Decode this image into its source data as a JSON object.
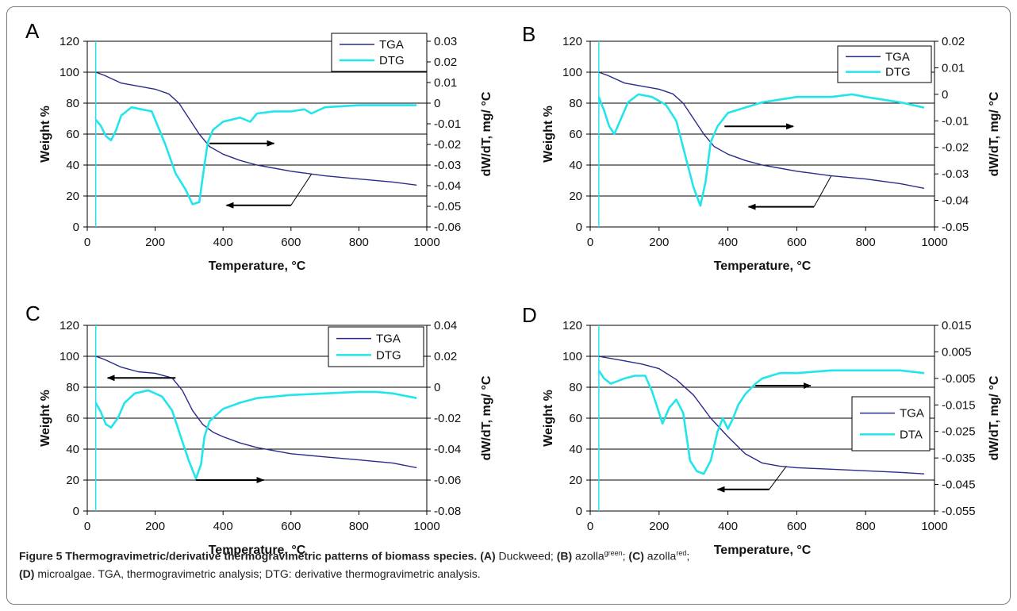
{
  "chart_data": [
    {
      "panel_label": "A",
      "type": "line",
      "xlabel": "Temperature,",
      "xunit": "°C",
      "ylabel": "Weight %",
      "y2label": "dW/dT, mg/",
      "y2unit": "°C",
      "xlim": [
        0,
        1000
      ],
      "xticks": [
        "0",
        "200",
        "400",
        "600",
        "800",
        "1000"
      ],
      "ylim": [
        0,
        120
      ],
      "yticks": [
        "0",
        "20",
        "40",
        "60",
        "80",
        "100",
        "120"
      ],
      "y2lim": [
        -0.06,
        0.03
      ],
      "y2ticks": [
        "-0.06",
        "-0.05",
        "-0.04",
        "-0.03",
        "-0.02",
        "-0.01",
        "0",
        "0.01",
        "0.02",
        "0.03"
      ],
      "gridlines": "horizontal",
      "legend": {
        "position": "top-right",
        "entries": [
          "TGA",
          "DTG"
        ]
      },
      "series": [
        {
          "name": "TGA",
          "axis": "left",
          "color": "#2b2b8c",
          "x": [
            25,
            50,
            100,
            150,
            200,
            240,
            270,
            300,
            330,
            360,
            400,
            450,
            500,
            600,
            700,
            800,
            900,
            970
          ],
          "y": [
            100,
            98,
            93,
            91,
            89,
            86,
            80,
            70,
            60,
            52,
            47,
            43,
            40,
            36,
            33,
            31,
            29,
            27
          ]
        },
        {
          "name": "DTG",
          "axis": "right",
          "color": "#22e5ec",
          "x": [
            25,
            40,
            55,
            70,
            85,
            100,
            130,
            160,
            190,
            210,
            230,
            260,
            290,
            310,
            330,
            345,
            355,
            370,
            400,
            450,
            480,
            500,
            550,
            600,
            640,
            660,
            700,
            800,
            900,
            970
          ],
          "y": [
            -0.008,
            -0.011,
            -0.016,
            -0.018,
            -0.013,
            -0.006,
            -0.002,
            -0.003,
            -0.004,
            -0.012,
            -0.02,
            -0.034,
            -0.042,
            -0.049,
            -0.048,
            -0.03,
            -0.019,
            -0.013,
            -0.009,
            -0.007,
            -0.009,
            -0.005,
            -0.004,
            -0.004,
            -0.003,
            -0.005,
            -0.002,
            -0.001,
            -0.001,
            -0.001
          ]
        }
      ],
      "annotations": [
        {
          "type": "arrow",
          "direction": "right",
          "x_from": 360,
          "x_to": 550,
          "y": 54,
          "label": "DTG axis"
        },
        {
          "type": "arrow",
          "direction": "left",
          "x_from": 600,
          "x_to": 410,
          "y": 14,
          "label": "TGA axis",
          "leader_to_x": 660,
          "leader_to_y": 34
        }
      ]
    },
    {
      "panel_label": "B",
      "type": "line",
      "xlabel": "Temperature,",
      "xunit": "°C",
      "ylabel": "Weight %",
      "y2label": "dW/dT, mg/",
      "y2unit": "°C",
      "xlim": [
        0,
        1000
      ],
      "xticks": [
        "0",
        "200",
        "400",
        "600",
        "800",
        "1000"
      ],
      "ylim": [
        0,
        120
      ],
      "yticks": [
        "0",
        "20",
        "40",
        "60",
        "80",
        "100",
        "120"
      ],
      "y2lim": [
        -0.05,
        0.02
      ],
      "y2ticks": [
        "-0.05",
        "-0.04",
        "-0.03",
        "-0.02",
        "-0.01",
        "0",
        "0.01",
        "0.02"
      ],
      "gridlines": "horizontal",
      "legend": {
        "position": "top-right",
        "entries": [
          "TGA",
          "DTG"
        ]
      },
      "series": [
        {
          "name": "TGA",
          "axis": "left",
          "color": "#2b2b8c",
          "x": [
            25,
            50,
            100,
            150,
            200,
            240,
            270,
            300,
            330,
            360,
            400,
            450,
            500,
            600,
            700,
            800,
            900,
            970
          ],
          "y": [
            100,
            98,
            93,
            91,
            89,
            86,
            80,
            70,
            60,
            52,
            47,
            43,
            40,
            36,
            33,
            31,
            28,
            25
          ]
        },
        {
          "name": "DTG",
          "axis": "right",
          "color": "#22e5ec",
          "x": [
            25,
            40,
            55,
            70,
            90,
            110,
            140,
            180,
            220,
            250,
            280,
            300,
            320,
            335,
            350,
            370,
            400,
            450,
            500,
            600,
            700,
            760,
            800,
            900,
            970
          ],
          "y": [
            -0.001,
            -0.006,
            -0.012,
            -0.015,
            -0.009,
            -0.003,
            0.0,
            -0.001,
            -0.004,
            -0.01,
            -0.025,
            -0.035,
            -0.042,
            -0.033,
            -0.018,
            -0.012,
            -0.007,
            -0.005,
            -0.003,
            -0.001,
            -0.001,
            0.0,
            -0.001,
            -0.003,
            -0.005
          ]
        }
      ],
      "annotations": [
        {
          "type": "arrow",
          "direction": "right",
          "x_from": 390,
          "x_to": 590,
          "y": 65,
          "label": "DTG axis"
        },
        {
          "type": "arrow",
          "direction": "left",
          "x_from": 650,
          "x_to": 460,
          "y": 13,
          "label": "TGA axis",
          "leader_to_x": 700,
          "leader_to_y": 33
        }
      ]
    },
    {
      "panel_label": "C",
      "type": "line",
      "xlabel": "Temperature,",
      "xunit": "°C",
      "ylabel": "Weight %",
      "y2label": "dW/dT, mg/",
      "y2unit": "°C",
      "xlim": [
        0,
        1000
      ],
      "xticks": [
        "0",
        "200",
        "400",
        "600",
        "800",
        "1000"
      ],
      "ylim": [
        0,
        120
      ],
      "yticks": [
        "0",
        "20",
        "40",
        "60",
        "80",
        "100",
        "120"
      ],
      "y2lim": [
        -0.08,
        0.04
      ],
      "y2ticks": [
        "-0.08",
        "-0.06",
        "-0.04",
        "-0.02",
        "0",
        "0.02",
        "0.04"
      ],
      "gridlines": "horizontal",
      "legend": {
        "position": "top-right",
        "entries": [
          "TGA",
          "DTG"
        ]
      },
      "series": [
        {
          "name": "TGA",
          "axis": "left",
          "color": "#2b2b8c",
          "x": [
            25,
            50,
            100,
            150,
            200,
            250,
            280,
            310,
            340,
            370,
            400,
            450,
            500,
            600,
            700,
            800,
            900,
            970
          ],
          "y": [
            100,
            98,
            93,
            90,
            89,
            86,
            78,
            65,
            56,
            51,
            48,
            44,
            41,
            37,
            35,
            33,
            31,
            28
          ]
        },
        {
          "name": "DTG",
          "axis": "right",
          "color": "#22e5ec",
          "x": [
            25,
            40,
            55,
            70,
            90,
            110,
            140,
            180,
            220,
            250,
            280,
            300,
            320,
            335,
            345,
            360,
            380,
            400,
            450,
            500,
            600,
            700,
            800,
            850,
            900,
            970
          ],
          "y": [
            -0.01,
            -0.016,
            -0.024,
            -0.026,
            -0.02,
            -0.01,
            -0.004,
            -0.002,
            -0.006,
            -0.015,
            -0.035,
            -0.048,
            -0.059,
            -0.05,
            -0.032,
            -0.022,
            -0.018,
            -0.014,
            -0.01,
            -0.007,
            -0.005,
            -0.004,
            -0.003,
            -0.003,
            -0.004,
            -0.007
          ]
        }
      ],
      "annotations": [
        {
          "type": "arrow",
          "direction": "left",
          "x_from": 260,
          "x_to": 60,
          "y": 86,
          "label": "TGA axis"
        },
        {
          "type": "arrow",
          "direction": "right",
          "x_from": 320,
          "x_to": 520,
          "y": 20,
          "label": "DTG axis"
        }
      ]
    },
    {
      "panel_label": "D",
      "type": "line",
      "xlabel": "Temperature,",
      "xunit": "°C",
      "ylabel": "Weight %",
      "y2label": "dW/dT, mg/",
      "y2unit": "°C",
      "xlim": [
        0,
        1000
      ],
      "xticks": [
        "0",
        "200",
        "400",
        "600",
        "800",
        "1000"
      ],
      "ylim": [
        0,
        120
      ],
      "yticks": [
        "0",
        "20",
        "40",
        "60",
        "80",
        "100",
        "120"
      ],
      "y2lim": [
        -0.055,
        0.015
      ],
      "y2ticks": [
        "-0.055",
        "-0.045",
        "-0.035",
        "-0.025",
        "-0.015",
        "-0.005",
        "0.005",
        "0.015"
      ],
      "gridlines": "horizontal",
      "legend": {
        "position": "right",
        "entries": [
          "TGA",
          "DTA"
        ]
      },
      "series": [
        {
          "name": "TGA",
          "axis": "left",
          "color": "#2b2b8c",
          "x": [
            25,
            100,
            150,
            200,
            250,
            300,
            350,
            400,
            450,
            500,
            550,
            600,
            700,
            800,
            900,
            970
          ],
          "y": [
            100,
            97,
            95,
            92,
            85,
            75,
            60,
            48,
            37,
            31,
            29,
            28,
            27,
            26,
            25,
            24
          ]
        },
        {
          "name": "DTA",
          "axis": "right",
          "color": "#22e5ec",
          "x": [
            25,
            40,
            60,
            80,
            100,
            130,
            160,
            180,
            200,
            210,
            230,
            250,
            270,
            290,
            310,
            330,
            350,
            370,
            385,
            400,
            415,
            430,
            450,
            480,
            500,
            550,
            600,
            700,
            800,
            900,
            970
          ],
          "y": [
            -0.002,
            -0.005,
            -0.007,
            -0.006,
            -0.005,
            -0.004,
            -0.004,
            -0.01,
            -0.018,
            -0.022,
            -0.016,
            -0.013,
            -0.018,
            -0.036,
            -0.04,
            -0.041,
            -0.036,
            -0.025,
            -0.02,
            -0.024,
            -0.02,
            -0.015,
            -0.011,
            -0.007,
            -0.005,
            -0.003,
            -0.003,
            -0.002,
            -0.002,
            -0.002,
            -0.003
          ]
        }
      ],
      "annotations": [
        {
          "type": "arrow",
          "direction": "right",
          "x_from": 480,
          "x_to": 640,
          "y": 81,
          "label": "DTA axis"
        },
        {
          "type": "arrow",
          "direction": "left",
          "x_from": 520,
          "x_to": 370,
          "y": 14,
          "label": "TGA axis",
          "leader_to_x": 570,
          "leader_to_y": 29
        }
      ]
    }
  ],
  "caption": {
    "title": "Figure 5 Thermogravimetric/derivative thermogravimetric patterns of biomass species.",
    "parts": [
      {
        "bold": "(A)",
        "text": " Duckweed;"
      },
      {
        "bold": "(B)",
        "text": " azolla",
        "sup": "green",
        "after": ";"
      },
      {
        "bold": "(C)",
        "text": " azolla",
        "sup": "red",
        "after": ";"
      }
    ],
    "line2_bold": "(D)",
    "line2_text": " microalgae. TGA, thermogravimetric analysis; DTG: derivative thermogravimetric analysis."
  },
  "colors": {
    "tga": "#2b2b8c",
    "dtg": "#22e5ec",
    "grid": "#000000",
    "frame": "#7a7a7a"
  }
}
